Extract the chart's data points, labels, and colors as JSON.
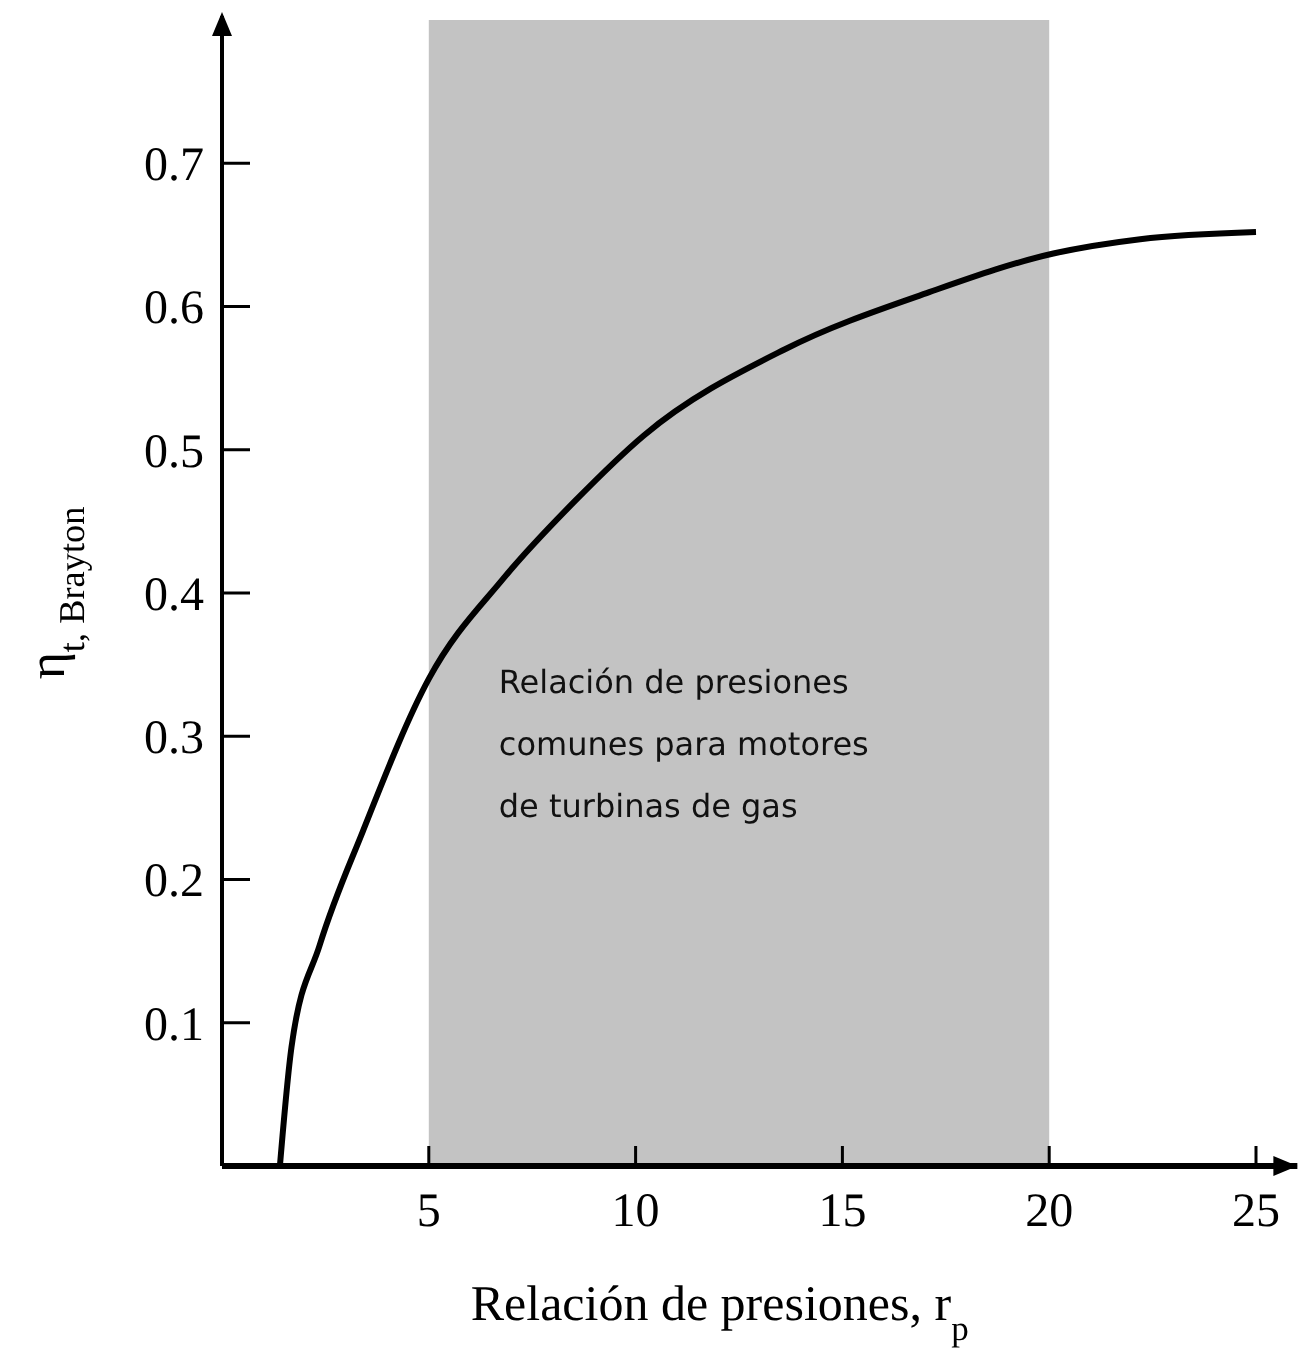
{
  "chart_data": {
    "type": "line",
    "xlabel": "Relación de presiones, r$_{p}$",
    "ylabel": "η$_{t, Brayton}$",
    "xlim": [
      0,
      26
    ],
    "ylim": [
      0,
      0.8
    ],
    "xticks": [
      5,
      10,
      15,
      20,
      25
    ],
    "yticks": [
      0.1,
      0.2,
      0.3,
      0.4,
      0.5,
      0.6,
      0.7
    ],
    "grid": false,
    "marker": "none",
    "line_style": "solid",
    "x": [
      1.4,
      1.68,
      2.36,
      3.41,
      5,
      6.8,
      8.56,
      10.2,
      13.6,
      17.1,
      20.1,
      22.2,
      25
    ],
    "series": [
      {
        "color": "#000000",
        "values": [
          0,
          0.083,
          0.154,
          0.234,
          0.34,
          0.41,
          0.465,
          0.51,
          0.57,
          0.61,
          0.637,
          0.647,
          0.652
        ]
      }
    ],
    "bands": [
      {
        "axis": "x",
        "from": 5,
        "to": 20,
        "label": "Relación de presiones comunes para motores de turbinas de gas",
        "color": "#c3c3c3"
      }
    ]
  }
}
